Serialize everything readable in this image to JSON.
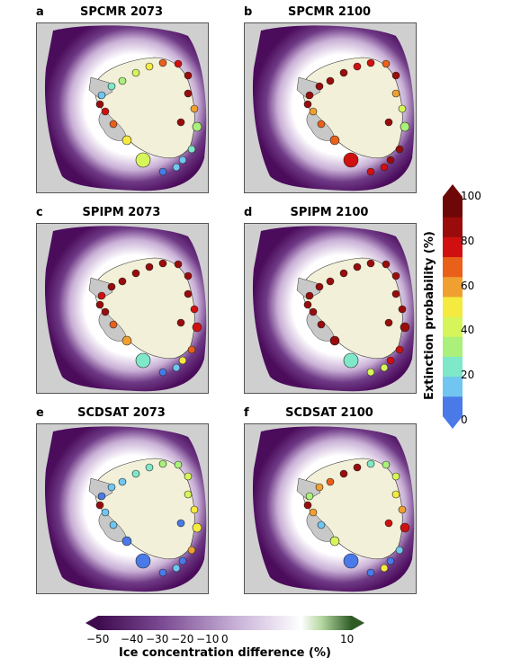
{
  "panels": [
    {
      "label": "a",
      "title": "SPCMR 2073"
    },
    {
      "label": "b",
      "title": "SPCMR 2100"
    },
    {
      "label": "c",
      "title": "SPIPM 2073"
    },
    {
      "label": "d",
      "title": "SPIPM 2100"
    },
    {
      "label": "e",
      "title": "SCDSAT 2073"
    },
    {
      "label": "f",
      "title": "SCDSAT 2100"
    }
  ],
  "colorbar_extinction": {
    "label": "Extinction probability (%)",
    "ticks": [
      "0",
      "20",
      "40",
      "60",
      "80",
      "100"
    ],
    "colors": [
      "#4a7ae8",
      "#70c6f0",
      "#7ee8c8",
      "#aaf07a",
      "#d6f55a",
      "#f5ea40",
      "#f0a030",
      "#e8601a",
      "#d01010",
      "#9a0c0c",
      "#6e0808"
    ]
  },
  "colorbar_ice": {
    "label": "Ice concentration difference (%)",
    "ticks": [
      "−50",
      "−40",
      "−30",
      "−20",
      "−10",
      "0",
      "10"
    ],
    "range": [
      -50,
      10
    ]
  },
  "chart_data": {
    "type": "map",
    "description_colors": {
      "land": "#f2f0d8",
      "ice_shelf": "#c8c8c8",
      "ocean_bg": "#d0d0d0",
      "sea_ice_low": "#4b0c5c",
      "sea_ice_mid": "#b08cc4",
      "sea_ice_zero": "#ffffff"
    },
    "colony_values_by_panel": [
      [
        10,
        25,
        35,
        45,
        55,
        70,
        85,
        90,
        95,
        60,
        30,
        20,
        15,
        10,
        5,
        40,
        50,
        75,
        88,
        92,
        96
      ],
      [
        90,
        92,
        95,
        98,
        85,
        80,
        70,
        95,
        60,
        45,
        30,
        95,
        92,
        88,
        85,
        80,
        75,
        70,
        65,
        98,
        99
      ],
      [
        85,
        90,
        92,
        95,
        95,
        97,
        98,
        96,
        92,
        88,
        80,
        70,
        50,
        10,
        5,
        20,
        60,
        75,
        90,
        95,
        98
      ],
      [
        95,
        96,
        97,
        98,
        99,
        97,
        96,
        95,
        93,
        92,
        90,
        88,
        85,
        45,
        40,
        20,
        95,
        97,
        98,
        99,
        99
      ],
      [
        5,
        10,
        15,
        20,
        25,
        30,
        35,
        40,
        45,
        50,
        55,
        60,
        5,
        10,
        2,
        3,
        8,
        12,
        15,
        95,
        5
      ],
      [
        30,
        60,
        70,
        90,
        95,
        20,
        35,
        45,
        55,
        65,
        80,
        10,
        5,
        50,
        5,
        2,
        40,
        15,
        60,
        95,
        85
      ]
    ]
  }
}
